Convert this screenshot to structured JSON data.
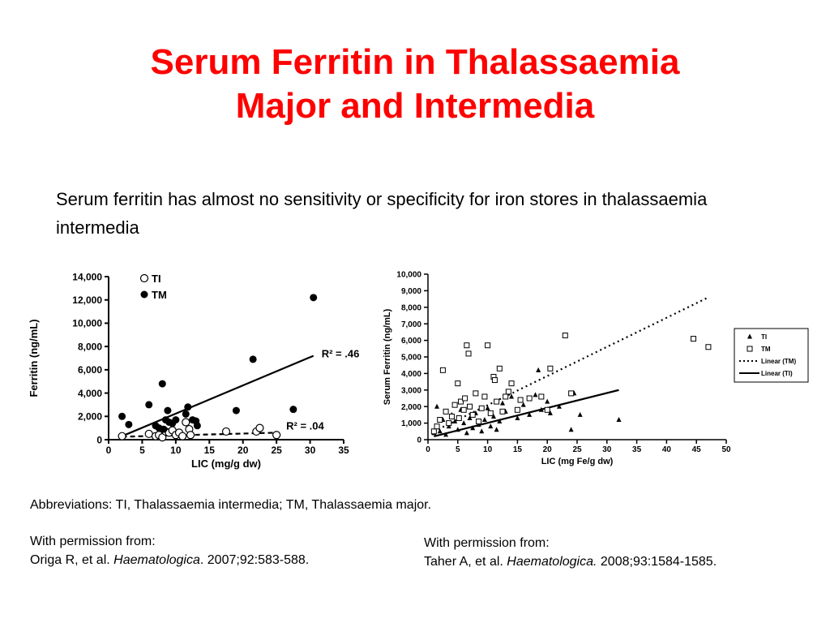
{
  "slide": {
    "title_line1": "Serum Ferritin in Thalassaemia",
    "title_line2": "Major and Intermedia",
    "bullet": "Serum ferritin has almost no sensitivity or specificity for iron stores in thalassaemia intermedia",
    "abbreviations": "Abbreviations: TI, Thalassaemia intermedia; TM, Thalassaemia major.",
    "permission_left": {
      "line1": "With permission from:",
      "authors": "Origa R, et al. ",
      "journal": "Haematologica",
      "citation": ". 2007;92:583-588."
    },
    "permission_right": {
      "line1": "With permission from:",
      "authors": "Taher A, et al. ",
      "journal": "Haematologica.",
      "citation": " 2008;93:1584-1585."
    }
  },
  "chart_data": [
    {
      "type": "scatter",
      "xlabel": "LIC (mg/g dw)",
      "ylabel": "Ferritin (ng/mL)",
      "xlim": [
        0,
        35
      ],
      "ylim": [
        0,
        14000
      ],
      "xticks": [
        "0",
        "5",
        "10",
        "15",
        "20",
        "25",
        "30",
        "35"
      ],
      "yticks": [
        "0",
        "2,000",
        "4,000",
        "6,000",
        "8,000",
        "10,000",
        "12,000",
        "14,000"
      ],
      "legend_position": "top-left",
      "series": [
        {
          "name": "TI",
          "marker": "open-circle",
          "points": [
            [
              2,
              300
            ],
            [
              6,
              500
            ],
            [
              7,
              300
            ],
            [
              7.5,
              400
            ],
            [
              8,
              200
            ],
            [
              8.5,
              700
            ],
            [
              9,
              600
            ],
            [
              9.5,
              800
            ],
            [
              10,
              400
            ],
            [
              10.5,
              600
            ],
            [
              11,
              300
            ],
            [
              11.5,
              1500
            ],
            [
              12,
              900
            ],
            [
              12.2,
              400
            ],
            [
              17.5,
              700
            ],
            [
              22,
              700
            ],
            [
              22.5,
              1000
            ],
            [
              25,
              400
            ]
          ]
        },
        {
          "name": "TM",
          "marker": "filled-circle",
          "points": [
            [
              2,
              2000
            ],
            [
              3,
              1300
            ],
            [
              6,
              3000
            ],
            [
              7,
              1200
            ],
            [
              7.5,
              1000
            ],
            [
              8,
              4800
            ],
            [
              8.2,
              900
            ],
            [
              8.5,
              1700
            ],
            [
              8.8,
              2500
            ],
            [
              9,
              1500
            ],
            [
              9.5,
              1400
            ],
            [
              10,
              1700
            ],
            [
              11.5,
              2200
            ],
            [
              11.8,
              2800
            ],
            [
              12.5,
              1700
            ],
            [
              13,
              1600
            ],
            [
              13.2,
              1200
            ],
            [
              19,
              2500
            ],
            [
              21.5,
              6900
            ],
            [
              27.5,
              2600
            ],
            [
              30.5,
              12200
            ]
          ]
        }
      ],
      "fits": [
        {
          "series": "TM",
          "style": "solid",
          "x": [
            2,
            30.5
          ],
          "y": [
            300,
            7200
          ],
          "label": "R² = .46"
        },
        {
          "series": "TI",
          "style": "dashed",
          "x": [
            2,
            25
          ],
          "y": [
            250,
            600
          ],
          "label": "R² = .04"
        }
      ]
    },
    {
      "type": "scatter",
      "xlabel": "LIC (mg Fe/g dw)",
      "ylabel": "Serum Ferritin (ng/mL)",
      "xlim": [
        0,
        50
      ],
      "ylim": [
        0,
        10000
      ],
      "xticks": [
        "0",
        "5",
        "10",
        "15",
        "20",
        "25",
        "30",
        "35",
        "40",
        "45",
        "50"
      ],
      "yticks": [
        "0",
        "1,000",
        "2,000",
        "3,000",
        "4,000",
        "5,000",
        "6,000",
        "7,000",
        "8,000",
        "9,000",
        "10,000"
      ],
      "legend_position": "right",
      "series": [
        {
          "name": "TI",
          "marker": "filled-triangle",
          "points": [
            [
              1,
              400
            ],
            [
              1.5,
              2000
            ],
            [
              2,
              500
            ],
            [
              2.5,
              1200
            ],
            [
              3,
              300
            ],
            [
              3.5,
              800
            ],
            [
              4,
              1500
            ],
            [
              4.5,
              1100
            ],
            [
              5,
              600
            ],
            [
              5.5,
              1800
            ],
            [
              6,
              1000
            ],
            [
              6.5,
              400
            ],
            [
              7,
              1300
            ],
            [
              7.5,
              700
            ],
            [
              8,
              1600
            ],
            [
              8.5,
              900
            ],
            [
              9,
              500
            ],
            [
              9.5,
              1200
            ],
            [
              10,
              1900
            ],
            [
              10.5,
              800
            ],
            [
              11,
              1400
            ],
            [
              11.5,
              600
            ],
            [
              12,
              1100
            ],
            [
              12.5,
              2200
            ],
            [
              13,
              1700
            ],
            [
              14,
              2600
            ],
            [
              15,
              1300
            ],
            [
              16,
              2100
            ],
            [
              17,
              1500
            ],
            [
              18,
              2700
            ],
            [
              18.5,
              4200
            ],
            [
              19,
              1800
            ],
            [
              20,
              2300
            ],
            [
              20.5,
              1600
            ],
            [
              22,
              2000
            ],
            [
              24,
              600
            ],
            [
              24.5,
              2800
            ],
            [
              25.5,
              1500
            ],
            [
              32,
              1200
            ]
          ]
        },
        {
          "name": "TM",
          "marker": "open-square",
          "points": [
            [
              1,
              500
            ],
            [
              1.5,
              800
            ],
            [
              2,
              1200
            ],
            [
              2.5,
              4200
            ],
            [
              3,
              1700
            ],
            [
              3.5,
              1000
            ],
            [
              4,
              1400
            ],
            [
              4.5,
              2100
            ],
            [
              5,
              3400
            ],
            [
              5.2,
              1300
            ],
            [
              5.5,
              2300
            ],
            [
              6,
              1800
            ],
            [
              6.2,
              2500
            ],
            [
              6.5,
              5700
            ],
            [
              6.8,
              5200
            ],
            [
              7,
              2000
            ],
            [
              7.5,
              1500
            ],
            [
              8,
              2800
            ],
            [
              8.5,
              1100
            ],
            [
              9,
              1900
            ],
            [
              9.5,
              2600
            ],
            [
              10,
              5700
            ],
            [
              10.5,
              1600
            ],
            [
              11,
              3800
            ],
            [
              11.2,
              3600
            ],
            [
              11.5,
              2300
            ],
            [
              12,
              4300
            ],
            [
              12.5,
              1700
            ],
            [
              13,
              2600
            ],
            [
              13.5,
              2900
            ],
            [
              14,
              3400
            ],
            [
              15,
              1800
            ],
            [
              15.5,
              2400
            ],
            [
              17,
              2500
            ],
            [
              19,
              2600
            ],
            [
              20,
              1800
            ],
            [
              20.5,
              4300
            ],
            [
              23,
              6300
            ],
            [
              24,
              2800
            ],
            [
              44.5,
              6100
            ],
            [
              47,
              5600
            ]
          ]
        }
      ],
      "fits": [
        {
          "series": "TM",
          "style": "dotted",
          "name": "Linear (TM)",
          "x": [
            1,
            47
          ],
          "y": [
            500,
            8600
          ]
        },
        {
          "series": "TI",
          "style": "solid",
          "name": "Linear (TI)",
          "x": [
            1,
            32
          ],
          "y": [
            200,
            3000
          ]
        }
      ]
    }
  ]
}
